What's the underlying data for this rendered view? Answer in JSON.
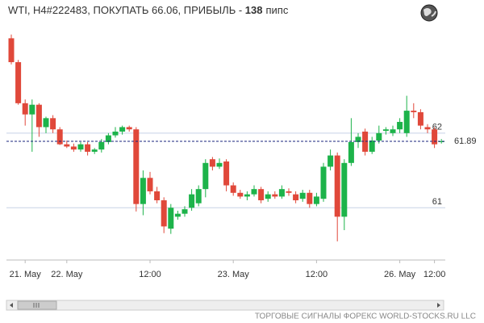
{
  "chart_data": {
    "type": "candlestick",
    "title_prefix": "WTI, H4#222483, ПОКУПАТЬ 66.06, ПРИБЫЛЬ - ",
    "title_bold": "138",
    "title_suffix": "пипс",
    "footer": "ТОРГОВЫЕ СИГНАЛЫ ФОРЕКС WORLD-STOCKS.RU LLC",
    "categories": [
      null,
      null,
      "21. May",
      null,
      null,
      null,
      null,
      null,
      "22. May",
      null,
      null,
      null,
      null,
      null,
      null,
      null,
      null,
      null,
      null,
      null,
      "12:00",
      null,
      null,
      null,
      null,
      null,
      null,
      null,
      null,
      null,
      null,
      null,
      "23. May",
      null,
      null,
      null,
      null,
      null,
      null,
      null,
      null,
      null,
      null,
      null,
      "12:00",
      null,
      null,
      null,
      null,
      null,
      null,
      null,
      null,
      null,
      null,
      null,
      "26. May",
      null,
      null,
      null,
      null,
      "12:00",
      null
    ],
    "open": [
      63.27,
      62.95,
      62.4,
      62.25,
      62.38,
      62.08,
      62.2,
      62.05,
      61.85,
      61.82,
      61.78,
      61.85,
      61.75,
      61.78,
      61.88,
      61.97,
      62.02,
      62.08,
      62.05,
      61.05,
      61.4,
      61.22,
      61.1,
      60.72,
      60.88,
      60.92,
      61.0,
      61.06,
      61.25,
      61.65,
      61.55,
      61.62,
      61.3,
      61.2,
      61.15,
      61.18,
      61.25,
      61.12,
      61.18,
      61.15,
      61.22,
      61.18,
      61.12,
      61.2,
      61.05,
      61.12,
      61.55,
      61.7,
      60.88,
      61.6,
      61.88,
      62.02,
      61.75,
      61.9,
      62.03,
      62.0,
      62.05,
      62.0,
      62.3,
      62.28,
      62.08,
      62.05,
      61.88
    ],
    "high": [
      63.32,
      62.98,
      62.45,
      62.45,
      62.4,
      62.22,
      62.24,
      62.08,
      61.9,
      61.86,
      61.88,
      61.88,
      61.8,
      61.92,
      62.0,
      62.08,
      62.1,
      62.1,
      62.08,
      61.5,
      61.48,
      61.28,
      61.14,
      61.05,
      60.96,
      61.02,
      61.25,
      61.3,
      61.65,
      61.68,
      61.66,
      61.65,
      61.34,
      61.24,
      61.22,
      61.3,
      61.28,
      61.22,
      61.22,
      61.3,
      61.26,
      61.22,
      61.24,
      61.24,
      61.2,
      61.6,
      61.78,
      61.74,
      61.65,
      62.2,
      62.0,
      62.06,
      61.95,
      62.1,
      62.08,
      62.1,
      62.2,
      62.5,
      62.4,
      62.32,
      62.12,
      62.08,
      61.92
    ],
    "low": [
      62.92,
      62.38,
      62.1,
      61.75,
      61.95,
      62.0,
      62.0,
      61.84,
      61.8,
      61.75,
      61.75,
      61.7,
      61.72,
      61.74,
      61.85,
      61.94,
      61.98,
      62.02,
      60.95,
      60.9,
      61.18,
      61.06,
      60.66,
      60.65,
      60.84,
      60.88,
      60.96,
      61.02,
      61.14,
      61.5,
      61.52,
      61.22,
      61.16,
      61.12,
      61.1,
      61.15,
      61.06,
      61.08,
      61.12,
      61.12,
      61.16,
      61.06,
      61.08,
      61.0,
      61.02,
      61.08,
      61.5,
      60.55,
      60.7,
      61.56,
      61.8,
      61.7,
      61.72,
      61.86,
      61.98,
      61.96,
      62.0,
      61.95,
      62.2,
      62.05,
      62.0,
      61.8,
      61.86
    ],
    "close": [
      62.95,
      62.4,
      62.25,
      62.38,
      62.08,
      62.2,
      62.05,
      61.85,
      61.82,
      61.78,
      61.85,
      61.75,
      61.78,
      61.88,
      61.97,
      62.02,
      62.08,
      62.05,
      61.05,
      61.4,
      61.22,
      61.1,
      60.75,
      61.0,
      60.92,
      60.98,
      61.18,
      61.25,
      61.6,
      61.55,
      61.6,
      61.3,
      61.2,
      61.15,
      61.18,
      61.25,
      61.1,
      61.18,
      61.15,
      61.25,
      61.2,
      61.1,
      61.2,
      61.05,
      61.15,
      61.55,
      61.7,
      60.88,
      61.6,
      61.88,
      61.95,
      61.75,
      61.9,
      62.0,
      62.05,
      62.05,
      62.15,
      62.3,
      62.28,
      62.1,
      62.05,
      61.85,
      61.89
    ],
    "up_color": "#1db34a",
    "down_color": "#e0483a",
    "ylim": [
      60.3,
      63.35
    ],
    "yticks": [
      61,
      62
    ],
    "current_price": 61.89,
    "current_color": "#1a237e",
    "grid": true
  }
}
